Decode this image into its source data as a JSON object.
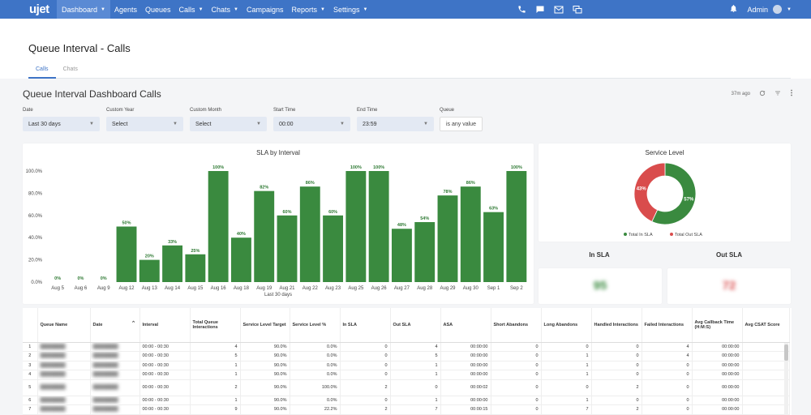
{
  "nav": {
    "logo": "ujet",
    "items": [
      {
        "label": "Dashboard",
        "caret": true,
        "active": true
      },
      {
        "label": "Agents",
        "caret": false
      },
      {
        "label": "Queues",
        "caret": false
      },
      {
        "label": "Calls",
        "caret": true
      },
      {
        "label": "Chats",
        "caret": true
      },
      {
        "label": "Campaigns",
        "caret": false
      },
      {
        "label": "Reports",
        "caret": true
      },
      {
        "label": "Settings",
        "caret": true
      }
    ],
    "icons": [
      "phone-icon",
      "chat-bubble-icon",
      "mail-icon",
      "sms-icon"
    ],
    "user": "Admin"
  },
  "page": {
    "title": "Queue Interval - Calls",
    "tabs": [
      "Calls",
      "Chats"
    ]
  },
  "dashboard": {
    "title": "Queue Interval Dashboard Calls",
    "updated": "37m ago"
  },
  "filters": [
    {
      "label": "Date",
      "value": "Last 30 days"
    },
    {
      "label": "Custom Year",
      "value": "Select"
    },
    {
      "label": "Custom Month",
      "value": "Select"
    },
    {
      "label": "Start Time",
      "value": "00:00"
    },
    {
      "label": "End Time",
      "value": "23:59"
    },
    {
      "label": "Queue",
      "value": "is any value"
    }
  ],
  "chart_data": [
    {
      "type": "bar",
      "title": "SLA by Interval",
      "xlabel": "Last 30 days",
      "ylabel": "",
      "ylim": [
        0,
        100
      ],
      "yticks": [
        "0.0%",
        "20.0%",
        "40.0%",
        "60.0%",
        "80.0%",
        "100.0%"
      ],
      "color": "#3a8a3f",
      "categories": [
        "Aug 5",
        "Aug 6",
        "Aug 9",
        "Aug 12",
        "Aug 13",
        "Aug 14",
        "Aug 15",
        "Aug 16",
        "Aug 18",
        "Aug 19",
        "Aug 21",
        "Aug 22",
        "Aug 23",
        "Aug 25",
        "Aug 26",
        "Aug 27",
        "Aug 28",
        "Aug 29",
        "Aug 30",
        "Sep 1",
        "Sep 2"
      ],
      "values": [
        0,
        0,
        0,
        50,
        20,
        33,
        25,
        100,
        40,
        82,
        60,
        86,
        60,
        100,
        100,
        48,
        54,
        78,
        86,
        63,
        100
      ],
      "data_labels": [
        "0%",
        "0%",
        "0%",
        "50%",
        "20%",
        "33%",
        "25%",
        "100%",
        "40%",
        "82%",
        "60%",
        "86%",
        "60%",
        "100%",
        "100%",
        "48%",
        "54%",
        "78%",
        "86%",
        "63%",
        "100%"
      ]
    },
    {
      "type": "pie",
      "title": "Service Level",
      "categories": [
        "Total In SLA",
        "Total Out SLA"
      ],
      "values": [
        57,
        43
      ],
      "data_labels": [
        "57%",
        "43%"
      ],
      "colors": [
        "#3a8a3f",
        "#d94c4c"
      ]
    }
  ],
  "kpis": [
    {
      "label": "In SLA",
      "value": "95",
      "color": "#3a8a3f"
    },
    {
      "label": "Out SLA",
      "value": "72",
      "color": "#d94c4c"
    }
  ],
  "table": {
    "headers": [
      "",
      "Queue Name",
      "Date",
      "Interval",
      "Total Queue Interactions",
      "Service Level Target",
      "Service Level %",
      "In SLA",
      "Out SLA",
      "ASA",
      "Short Abandons",
      "Long Abandons",
      "Handled Interactions",
      "Failed Interactions",
      "Avg Callback Time (H:M:S)",
      "Avg CSAT Score"
    ],
    "rows": [
      [
        "1",
        "",
        "",
        "00:00 - 00:30",
        "4",
        "90.0%",
        "0.0%",
        "0",
        "4",
        "00:00:00",
        "0",
        "0",
        "0",
        "4",
        "00:00:00",
        ""
      ],
      [
        "2",
        "",
        "",
        "00:00 - 00:30",
        "5",
        "90.0%",
        "0.0%",
        "0",
        "5",
        "00:00:00",
        "0",
        "1",
        "0",
        "4",
        "00:00:00",
        ""
      ],
      [
        "3",
        "",
        "",
        "00:00 - 00:30",
        "1",
        "90.0%",
        "0.0%",
        "0",
        "1",
        "00:00:00",
        "0",
        "1",
        "0",
        "0",
        "00:00:00",
        ""
      ],
      [
        "4",
        "",
        "",
        "00:00 - 00:30",
        "1",
        "90.0%",
        "0.0%",
        "0",
        "1",
        "00:00:00",
        "0",
        "1",
        "0",
        "0",
        "00:00:00",
        ""
      ],
      [
        "5",
        "",
        "",
        "00:00 - 00:30",
        "2",
        "90.0%",
        "100.0%",
        "2",
        "0",
        "00:00:02",
        "0",
        "0",
        "2",
        "0",
        "00:00:00",
        ""
      ],
      [
        "6",
        "",
        "",
        "00:00 - 00:30",
        "1",
        "90.0%",
        "0.0%",
        "0",
        "1",
        "00:00:00",
        "0",
        "1",
        "0",
        "0",
        "00:00:00",
        ""
      ],
      [
        "7",
        "",
        "",
        "00:00 - 00:30",
        "9",
        "90.0%",
        "22.2%",
        "2",
        "7",
        "00:00:15",
        "0",
        "7",
        "2",
        "0",
        "00:00:00",
        ""
      ]
    ]
  }
}
